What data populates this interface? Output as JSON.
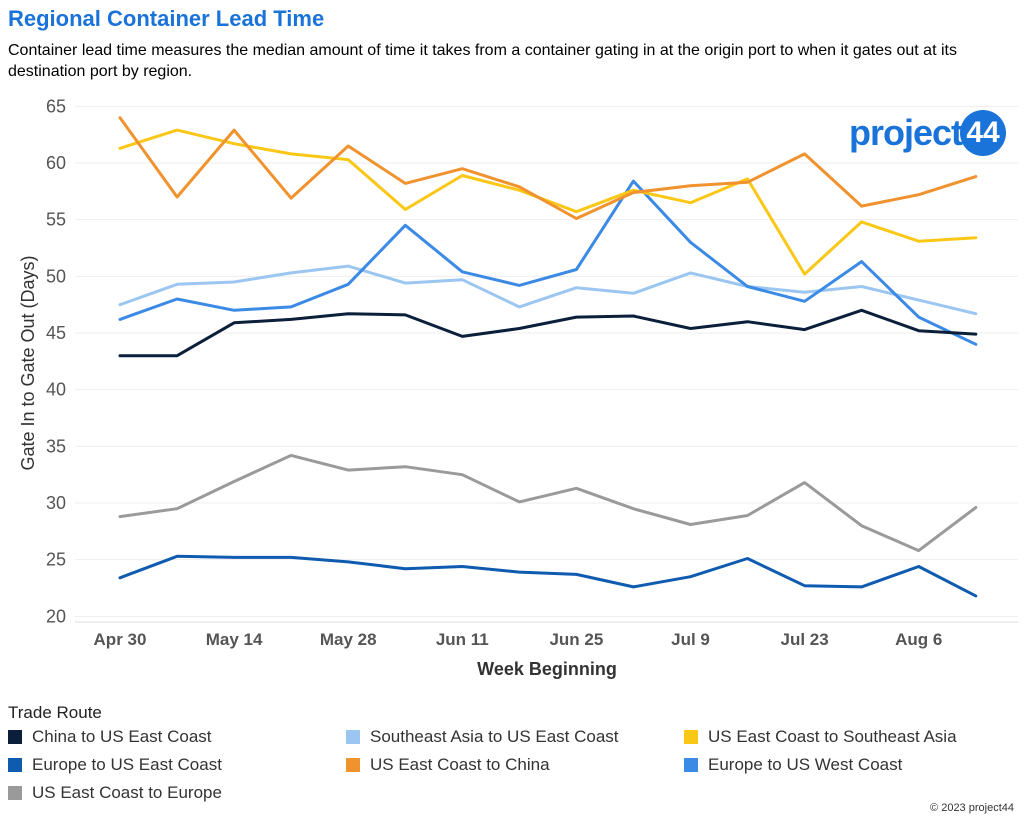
{
  "title": "Regional Container Lead Time",
  "subtitle": "Container lead time measures the median amount of time it takes from a container gating in at the origin port to when it gates out at its destination port by region.",
  "logo": {
    "text": "project",
    "number": "44"
  },
  "footer": "© 2023 project44",
  "legend_title": "Trade Route",
  "chart_data": {
    "type": "line",
    "xlabel": "Week Beginning",
    "ylabel": "Gate In to Gate Out (Days)",
    "ylim": [
      19.5,
      66
    ],
    "yticks": [
      20,
      25,
      30,
      35,
      40,
      45,
      50,
      55,
      60,
      65
    ],
    "ytick_labels": [
      "20",
      "25",
      "30",
      "35",
      "40",
      "45",
      "50",
      "55",
      "60",
      "65"
    ],
    "x": [
      "Apr 30",
      "May 7",
      "May 14",
      "May 21",
      "May 28",
      "Jun 4",
      "Jun 11",
      "Jun 18",
      "Jun 25",
      "Jul 2",
      "Jul 9",
      "Jul 16",
      "Jul 23",
      "Jul 30",
      "Aug 6",
      "Aug 13"
    ],
    "xtick_labels": [
      "Apr 30",
      "",
      "May 14",
      "",
      "May 28",
      "",
      "Jun 11",
      "",
      "Jun 25",
      "",
      "Jul 9",
      "",
      "Jul 23",
      "",
      "Aug 6",
      ""
    ],
    "grid": true,
    "legend_placement": "bottom",
    "series": [
      {
        "name": "China to US East Coast",
        "color": "#0b1f3a",
        "values": [
          43.0,
          43.0,
          45.9,
          46.2,
          46.7,
          46.6,
          44.7,
          45.4,
          46.4,
          46.5,
          45.4,
          46.0,
          45.3,
          47.0,
          45.2,
          44.9
        ]
      },
      {
        "name": "Europe to US East Coast",
        "color": "#0e5bb0",
        "values": [
          23.4,
          25.3,
          25.2,
          25.2,
          24.8,
          24.2,
          24.4,
          23.9,
          23.7,
          22.6,
          23.5,
          25.1,
          22.7,
          22.6,
          24.4,
          21.8
        ]
      },
      {
        "name": "Europe to US West Coast",
        "color": "#3b8ae6",
        "values": [
          46.2,
          48.0,
          47.0,
          47.3,
          49.3,
          54.5,
          50.4,
          49.2,
          50.6,
          58.4,
          53.0,
          49.1,
          47.8,
          51.3,
          46.4,
          44.0
        ]
      },
      {
        "name": "Southeast Asia to US East Coast",
        "color": "#9cc6f2",
        "values": [
          47.5,
          49.3,
          49.5,
          50.3,
          50.9,
          49.4,
          49.7,
          47.3,
          49.0,
          48.5,
          50.3,
          49.1,
          48.6,
          49.1,
          47.9,
          46.7
        ]
      },
      {
        "name": "US East Coast to China",
        "color": "#f0922d",
        "values": [
          64.0,
          57.0,
          62.9,
          56.9,
          61.5,
          58.2,
          59.5,
          57.9,
          55.1,
          57.4,
          58.0,
          58.3,
          60.8,
          56.2,
          57.2,
          58.8
        ]
      },
      {
        "name": "US East Coast to Europe",
        "color": "#9a9a9a",
        "values": [
          28.8,
          29.5,
          31.9,
          34.2,
          32.9,
          33.2,
          32.5,
          30.1,
          31.3,
          29.5,
          28.1,
          28.9,
          31.8,
          28.0,
          25.8,
          29.6
        ]
      },
      {
        "name": "US East Coast to Southeast Asia",
        "color": "#fbc716",
        "values": [
          61.3,
          62.9,
          61.7,
          60.8,
          60.3,
          55.9,
          58.9,
          57.6,
          55.7,
          57.6,
          56.5,
          58.6,
          50.2,
          54.8,
          53.1,
          53.4
        ]
      }
    ]
  }
}
